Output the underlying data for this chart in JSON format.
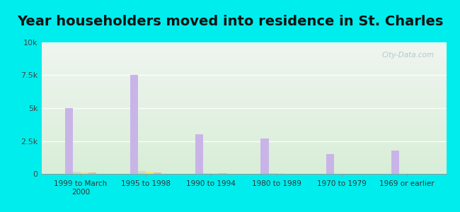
{
  "title": "Year householders moved into residence in St. Charles",
  "categories": [
    "1999 to March\n2000",
    "1995 to 1998",
    "1990 to 1994",
    "1980 to 1989",
    "1970 to 1979",
    "1969 or earlier"
  ],
  "series": {
    "White Non-Hispanic": [
      5000,
      7500,
      3000,
      2700,
      1500,
      1800
    ],
    "Black": [
      170,
      200,
      80,
      50,
      0,
      0
    ],
    "Two or More Races": [
      130,
      160,
      60,
      30,
      0,
      0
    ],
    "Hispanic or Latino": [
      90,
      130,
      40,
      20,
      0,
      0
    ]
  },
  "colors": {
    "White Non-Hispanic": "#c9b4e8",
    "Black": "#d0ddb8",
    "Two or More Races": "#ede87a",
    "Hispanic or Latino": "#f0b8a8"
  },
  "ylim": [
    0,
    10000
  ],
  "yticks": [
    0,
    2500,
    5000,
    7500,
    10000
  ],
  "ytick_labels": [
    "0",
    "2.5k",
    "5k",
    "7.5k",
    "10k"
  ],
  "background_color": "#00eded",
  "plot_bg_top": "#f0f5f0",
  "plot_bg_bottom": "#d8eed8",
  "watermark": "City-Data.com",
  "bar_width": 0.12,
  "title_fontsize": 14,
  "title_color": "#111111"
}
